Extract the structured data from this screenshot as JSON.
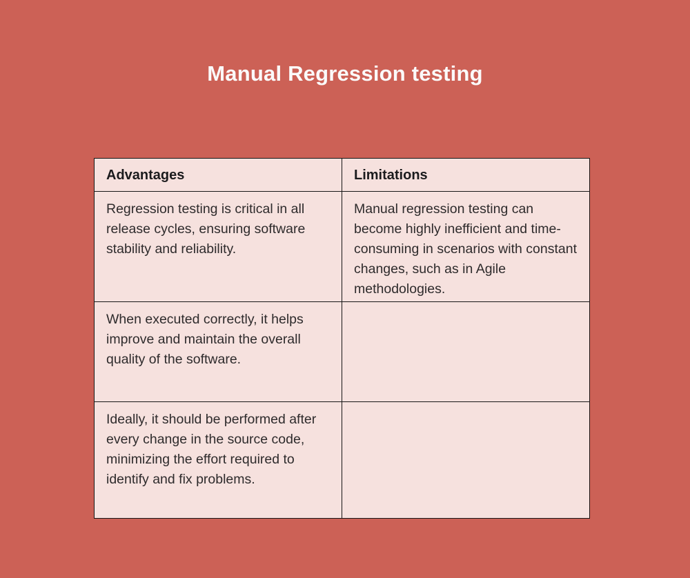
{
  "page": {
    "title": "Manual Regression testing"
  },
  "theme": {
    "page_bg": "#cc6156",
    "cell_bg": "#f6e1de",
    "border_color": "#161616",
    "title_color": "#fbfafa",
    "header_text": "#1b1b1d",
    "body_text": "#2e2b2c"
  },
  "table": {
    "columns": [
      "Advantages",
      "Limitations"
    ],
    "rows": [
      {
        "advantages": "Regression testing is critical in all release cycles, ensuring software stability and reliability.",
        "limitations": "Manual regression testing can become highly inefficient and time-consuming in scenarios with constant changes, such as in Agile methodologies."
      },
      {
        "advantages": "When executed correctly, it helps improve and maintain the overall quality of the software.",
        "limitations": ""
      },
      {
        "advantages": "Ideally, it should be performed after every change in the source code, minimizing the effort required to identify and fix problems.",
        "limitations": ""
      }
    ]
  }
}
